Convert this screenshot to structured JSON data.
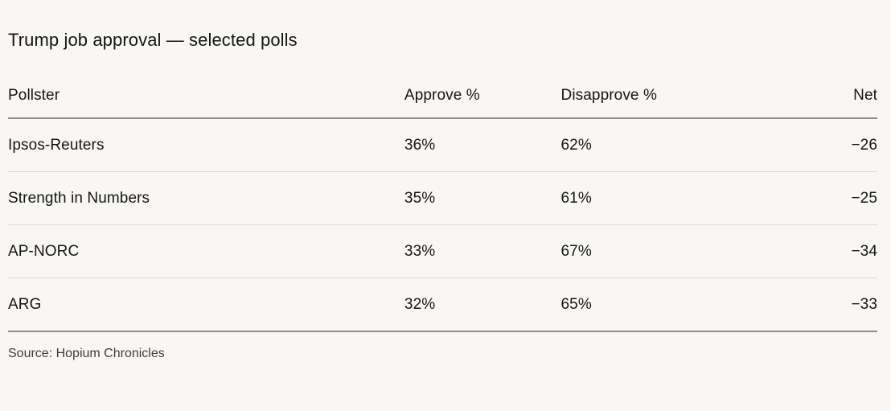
{
  "title": "Trump job approval — selected polls",
  "source": "Source: Hopium Chronicles",
  "colors": {
    "background": "#f8f7f4",
    "text": "#151515",
    "source_text": "#3d3d3d",
    "rule_strong": "#8c8c8c",
    "rule_light": "#dbd9d5"
  },
  "chart_data": {
    "type": "table",
    "title": "Trump job approval — selected polls",
    "columns": [
      "Pollster",
      "Approve %",
      "Disapprove %",
      "Net"
    ],
    "rows": [
      {
        "pollster": "Ipsos-Reuters",
        "approve": "36%",
        "disapprove": "62%",
        "net": "−26"
      },
      {
        "pollster": "Strength in Numbers",
        "approve": "35%",
        "disapprove": "61%",
        "net": "−25"
      },
      {
        "pollster": "AP-NORC",
        "approve": "33%",
        "disapprove": "67%",
        "net": "−34"
      },
      {
        "pollster": "ARG",
        "approve": "32%",
        "disapprove": "65%",
        "net": "−33"
      }
    ],
    "numeric": {
      "approve": [
        36,
        35,
        33,
        32
      ],
      "disapprove": [
        62,
        61,
        67,
        65
      ],
      "net": [
        -26,
        -25,
        -34,
        -33
      ]
    },
    "source": "Source: Hopium Chronicles",
    "layout": {
      "net_column_align": "right",
      "header_rule": true,
      "bottom_rule": true
    }
  }
}
